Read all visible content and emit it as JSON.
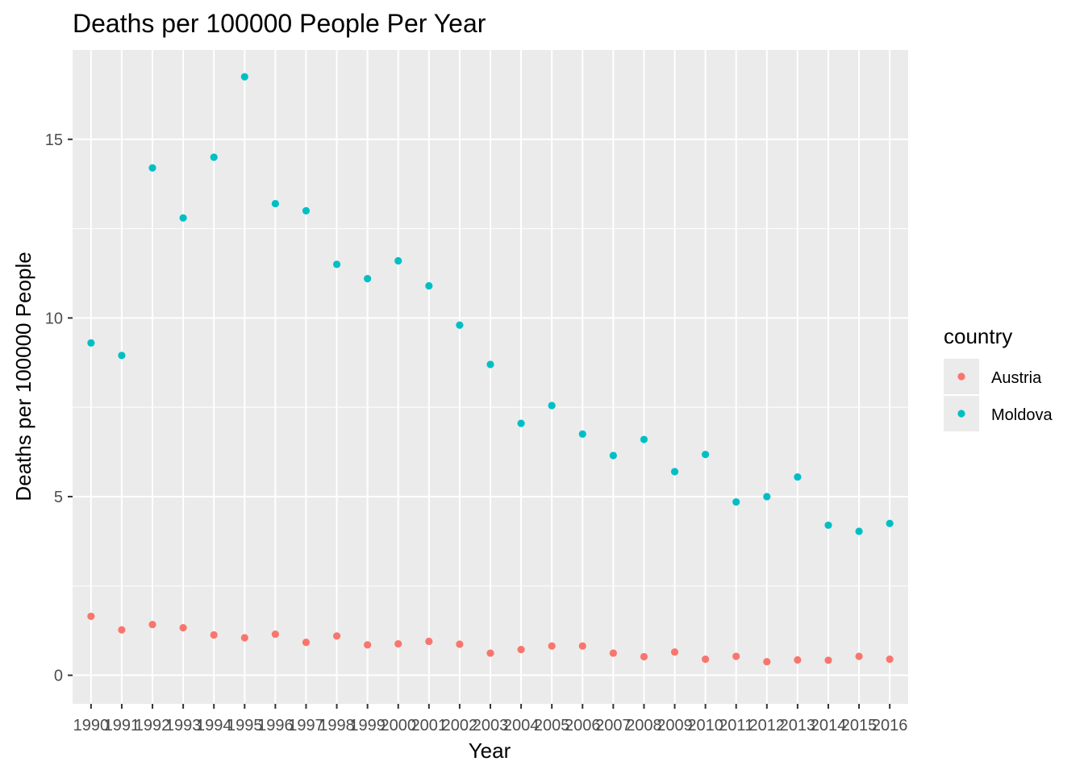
{
  "chart_data": {
    "type": "scatter",
    "title": "Deaths per 100000 People Per Year",
    "xlabel": "Year",
    "ylabel": "Deaths per 100000 People",
    "x": [
      "1990",
      "1991",
      "1992",
      "1993",
      "1994",
      "1995",
      "1996",
      "1997",
      "1998",
      "1999",
      "2000",
      "2001",
      "2002",
      "2003",
      "2004",
      "2005",
      "2006",
      "2007",
      "2008",
      "2009",
      "2010",
      "2011",
      "2012",
      "2013",
      "2014",
      "2015",
      "2016"
    ],
    "ylim": [
      -0.8,
      17.5
    ],
    "y_ticks": [
      0,
      5,
      10,
      15
    ],
    "grid": true,
    "legend_position": "right",
    "legend_title": "country",
    "series": [
      {
        "name": "Austria",
        "color": "#F8766D",
        "values": [
          1.65,
          1.27,
          1.42,
          1.33,
          1.13,
          1.05,
          1.15,
          0.92,
          1.1,
          0.85,
          0.88,
          0.95,
          0.87,
          0.62,
          0.72,
          0.82,
          0.82,
          0.62,
          0.52,
          0.65,
          0.45,
          0.53,
          0.38,
          0.43,
          0.42,
          0.53,
          0.45
        ]
      },
      {
        "name": "Moldova",
        "color": "#00BFC4",
        "values": [
          9.3,
          8.95,
          14.2,
          12.8,
          14.5,
          16.75,
          13.2,
          13.0,
          11.5,
          11.1,
          11.6,
          10.9,
          9.8,
          8.7,
          7.05,
          7.55,
          6.75,
          6.15,
          6.6,
          5.7,
          6.18,
          4.85,
          5.0,
          5.55,
          4.2,
          4.03,
          4.25
        ]
      }
    ]
  }
}
